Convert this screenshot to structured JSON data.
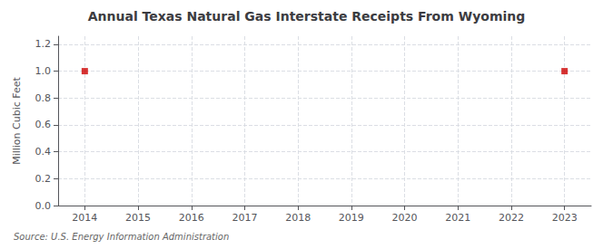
{
  "chart_data": {
    "type": "scatter",
    "title": "Annual Texas Natural Gas Interstate Receipts From Wyoming",
    "ylabel": "Million Cubic Feet",
    "annotations": [
      "Source: U.S. Energy Information Administration"
    ],
    "x": [
      2014,
      2023
    ],
    "values": [
      1.0,
      1.0
    ],
    "xlim": [
      2013.5,
      2023.5
    ],
    "xticks": [
      2014,
      2015,
      2016,
      2017,
      2018,
      2019,
      2020,
      2021,
      2022,
      2023
    ],
    "ylim": [
      0.0,
      1.26
    ],
    "yticks": [
      {
        "value": 0,
        "label": "0.0"
      },
      0.2,
      0.4,
      0.6,
      0.8,
      {
        "value": 1,
        "label": "1.0"
      },
      1.2
    ],
    "color": "#cc0000",
    "marker": "square",
    "grid": true
  }
}
